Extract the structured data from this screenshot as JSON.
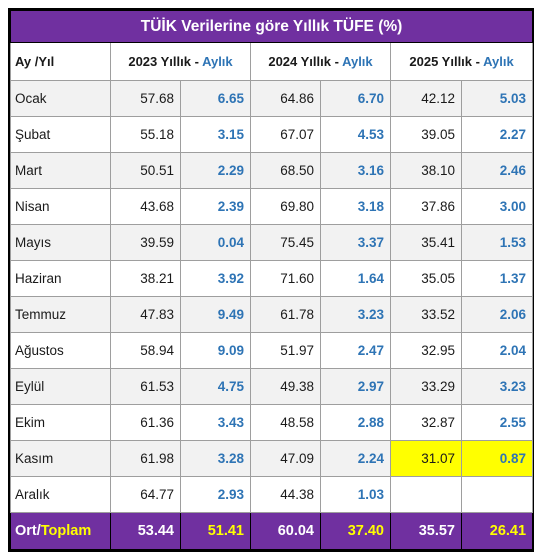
{
  "title": "TÜİK Verilerine göre Yıllık TÜFE (%)",
  "headers": {
    "month": "Ay /Yıl",
    "years": [
      {
        "yearly": "2023 Yıllık - ",
        "monthly": "Aylık"
      },
      {
        "yearly": "2024 Yıllık - ",
        "monthly": "Aylık"
      },
      {
        "yearly": "2025 Yıllık - ",
        "monthly": "Aylık"
      }
    ]
  },
  "rows": [
    {
      "month": "Ocak",
      "cells": [
        "57.68",
        "6.65",
        "64.86",
        "6.70",
        "42.12",
        "5.03"
      ]
    },
    {
      "month": "Şubat",
      "cells": [
        "55.18",
        "3.15",
        "67.07",
        "4.53",
        "39.05",
        "2.27"
      ]
    },
    {
      "month": "Mart",
      "cells": [
        "50.51",
        "2.29",
        "68.50",
        "3.16",
        "38.10",
        "2.46"
      ]
    },
    {
      "month": "Nisan",
      "cells": [
        "43.68",
        "2.39",
        "69.80",
        "3.18",
        "37.86",
        "3.00"
      ]
    },
    {
      "month": "Mayıs",
      "cells": [
        "39.59",
        "0.04",
        "75.45",
        "3.37",
        "35.41",
        "1.53"
      ]
    },
    {
      "month": "Haziran",
      "cells": [
        "38.21",
        "3.92",
        "71.60",
        "1.64",
        "35.05",
        "1.37"
      ]
    },
    {
      "month": "Temmuz",
      "cells": [
        "47.83",
        "9.49",
        "61.78",
        "3.23",
        "33.52",
        "2.06"
      ]
    },
    {
      "month": "Ağustos",
      "cells": [
        "58.94",
        "9.09",
        "51.97",
        "2.47",
        "32.95",
        "2.04"
      ]
    },
    {
      "month": "Eylül",
      "cells": [
        "61.53",
        "4.75",
        "49.38",
        "2.97",
        "33.29",
        "3.23"
      ]
    },
    {
      "month": "Ekim",
      "cells": [
        "61.36",
        "3.43",
        "48.58",
        "2.88",
        "32.87",
        "2.55"
      ]
    },
    {
      "month": "Kasım",
      "cells": [
        "61.98",
        "3.28",
        "47.09",
        "2.24",
        "31.07",
        "0.87"
      ]
    },
    {
      "month": "Aralık",
      "cells": [
        "64.77",
        "2.93",
        "44.38",
        "1.03",
        "",
        ""
      ]
    }
  ],
  "total": {
    "label_a": "Ort/",
    "label_b": "Toplam",
    "cells": [
      "53.44",
      "51.41",
      "60.04",
      "37.40",
      "35.57",
      "26.41"
    ]
  },
  "colors": {
    "header_bg": "#7030a0",
    "monthly_text": "#2e74b5",
    "highlight": "#ffff00"
  }
}
